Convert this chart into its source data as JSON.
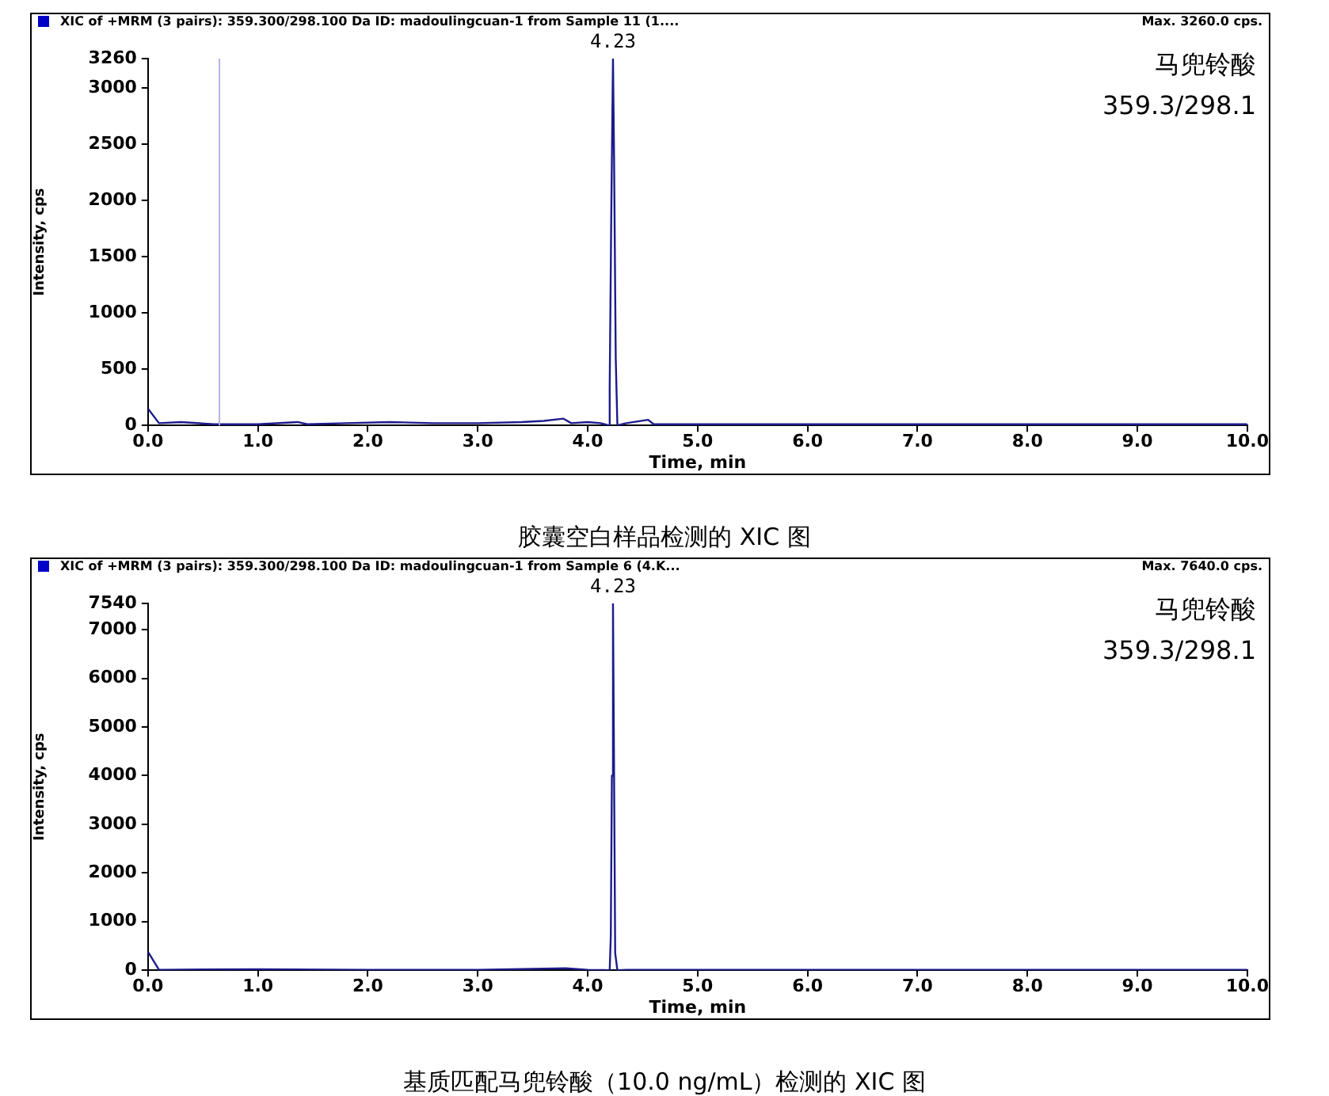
{
  "chart_data": [
    {
      "type": "line",
      "title": "XIC of +MRM (3 pairs): 359.300/298.100 Da ID: madoulingcuan-1 from Sample 11 (1....",
      "xlabel": "Time, min",
      "ylabel": "Intensity, cps",
      "annotations": [
        "Max. 3260.0 cps.",
        "马兜铃酸",
        "359.3/298.1",
        {
          "text": "4.23",
          "x": 4.23,
          "y": 3260
        },
        "胶囊空白样品检测的 XIC 图"
      ],
      "x": [
        0,
        0.1,
        0.3,
        0.6,
        1.0,
        1.36,
        1.45,
        1.8,
        2.2,
        2.6,
        3.0,
        3.4,
        3.6,
        3.78,
        3.85,
        4.0,
        4.12,
        4.19,
        4.2,
        4.215,
        4.23,
        4.24,
        4.255,
        4.27,
        4.35,
        4.55,
        4.6,
        5.0,
        6.0,
        7.0,
        8.0,
        9.0,
        10.0
      ],
      "series": [
        {
          "color": "#1c1c8c",
          "values": [
            150,
            20,
            30,
            10,
            10,
            30,
            10,
            20,
            30,
            20,
            20,
            30,
            40,
            60,
            20,
            30,
            20,
            0,
            330,
            1940,
            3260,
            2360,
            600,
            0,
            20,
            50,
            10,
            10,
            10,
            10,
            10,
            10,
            10
          ]
        }
      ],
      "ref_lines": [
        {
          "axis": "x",
          "value": 0.65,
          "color": "#b4b4e6"
        }
      ],
      "xlim": [
        0,
        10
      ],
      "xticks": [
        {
          "value": 0,
          "label": "0.0"
        },
        {
          "value": 1,
          "label": "1.0"
        },
        {
          "value": 2,
          "label": "2.0"
        },
        {
          "value": 3,
          "label": "3.0"
        },
        {
          "value": 4,
          "label": "4.0"
        },
        {
          "value": 5,
          "label": "5.0"
        },
        {
          "value": 6,
          "label": "6.0"
        },
        {
          "value": 7,
          "label": "7.0"
        },
        {
          "value": 8,
          "label": "8.0"
        },
        {
          "value": 9,
          "label": "9.0"
        },
        {
          "value": 10,
          "label": "10.0"
        }
      ],
      "ylim": [
        0,
        3260
      ],
      "yticks": [
        0,
        500,
        1000,
        1500,
        2000,
        2500,
        3000,
        3260
      ],
      "grid": false,
      "legend": false,
      "marker": "none"
    },
    {
      "type": "line",
      "title": "XIC of +MRM (3 pairs): 359.300/298.100 Da ID: madoulingcuan-1 from Sample 6 (4.K...",
      "xlabel": "Time, min",
      "ylabel": "Intensity, cps",
      "annotations": [
        "Max. 7640.0 cps.",
        "马兜铃酸",
        "359.3/298.1",
        {
          "text": "4.23",
          "x": 4.23,
          "y": 7540
        },
        "基质匹配马兜铃酸（10.0 ng/mL）检测的 XIC 图"
      ],
      "x": [
        0,
        0.1,
        1.0,
        2.0,
        3.0,
        3.8,
        4.0,
        4.2,
        4.21,
        4.22,
        4.23,
        4.24,
        4.25,
        4.27,
        4.35,
        5.0,
        6.0,
        7.0,
        8.0,
        9.0,
        10.0
      ],
      "series": [
        {
          "color": "#1c1c8c",
          "values": [
            380,
            10,
            20,
            10,
            10,
            40,
            10,
            0,
            700,
            4000,
            7540,
            4000,
            350,
            0,
            10,
            10,
            10,
            10,
            10,
            10,
            10
          ]
        }
      ],
      "xlim": [
        0,
        10
      ],
      "xticks": [
        {
          "value": 0,
          "label": "0.0"
        },
        {
          "value": 1,
          "label": "1.0"
        },
        {
          "value": 2,
          "label": "2.0"
        },
        {
          "value": 3,
          "label": "3.0"
        },
        {
          "value": 4,
          "label": "4.0"
        },
        {
          "value": 5,
          "label": "5.0"
        },
        {
          "value": 6,
          "label": "6.0"
        },
        {
          "value": 7,
          "label": "7.0"
        },
        {
          "value": 8,
          "label": "8.0"
        },
        {
          "value": 9,
          "label": "9.0"
        },
        {
          "value": 10,
          "label": "10.0"
        }
      ],
      "ylim": [
        0,
        7540
      ],
      "yticks": [
        0,
        1000,
        2000,
        3000,
        4000,
        5000,
        6000,
        7000,
        7540
      ],
      "grid": false,
      "legend": false,
      "marker": "none"
    }
  ]
}
